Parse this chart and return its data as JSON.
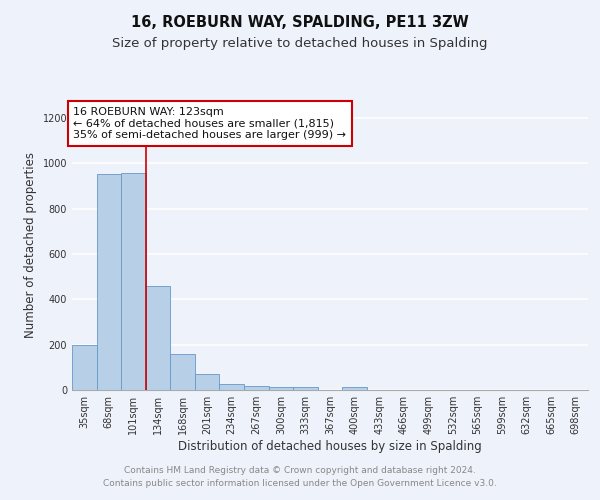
{
  "title": "16, ROEBURN WAY, SPALDING, PE11 3ZW",
  "subtitle": "Size of property relative to detached houses in Spalding",
  "xlabel": "Distribution of detached houses by size in Spalding",
  "ylabel": "Number of detached properties",
  "categories": [
    "35sqm",
    "68sqm",
    "101sqm",
    "134sqm",
    "168sqm",
    "201sqm",
    "234sqm",
    "267sqm",
    "300sqm",
    "333sqm",
    "367sqm",
    "400sqm",
    "433sqm",
    "466sqm",
    "499sqm",
    "532sqm",
    "565sqm",
    "599sqm",
    "632sqm",
    "665sqm",
    "698sqm"
  ],
  "values": [
    200,
    955,
    960,
    460,
    160,
    72,
    25,
    18,
    15,
    12,
    0,
    12,
    0,
    0,
    0,
    0,
    0,
    0,
    0,
    0,
    0
  ],
  "bar_color": "#b8cfe8",
  "bar_edge_color": "#6898c8",
  "vline_x": 2.5,
  "vline_color": "#cc0000",
  "annotation_text": "16 ROEBURN WAY: 123sqm\n← 64% of detached houses are smaller (1,815)\n35% of semi-detached houses are larger (999) →",
  "annotation_box_facecolor": "#ffffff",
  "annotation_box_edge": "#cc0000",
  "ylim": [
    0,
    1280
  ],
  "yticks": [
    0,
    200,
    400,
    600,
    800,
    1000,
    1200
  ],
  "footer": "Contains HM Land Registry data © Crown copyright and database right 2024.\nContains public sector information licensed under the Open Government Licence v3.0.",
  "bg_color": "#eef2fb",
  "plot_bg_color": "#eef2fb",
  "grid_color": "#ffffff",
  "title_fontsize": 10.5,
  "subtitle_fontsize": 9.5,
  "tick_fontsize": 7,
  "ylabel_fontsize": 8.5,
  "xlabel_fontsize": 8.5,
  "annotation_fontsize": 8,
  "footer_fontsize": 6.5,
  "footer_color": "#888888"
}
